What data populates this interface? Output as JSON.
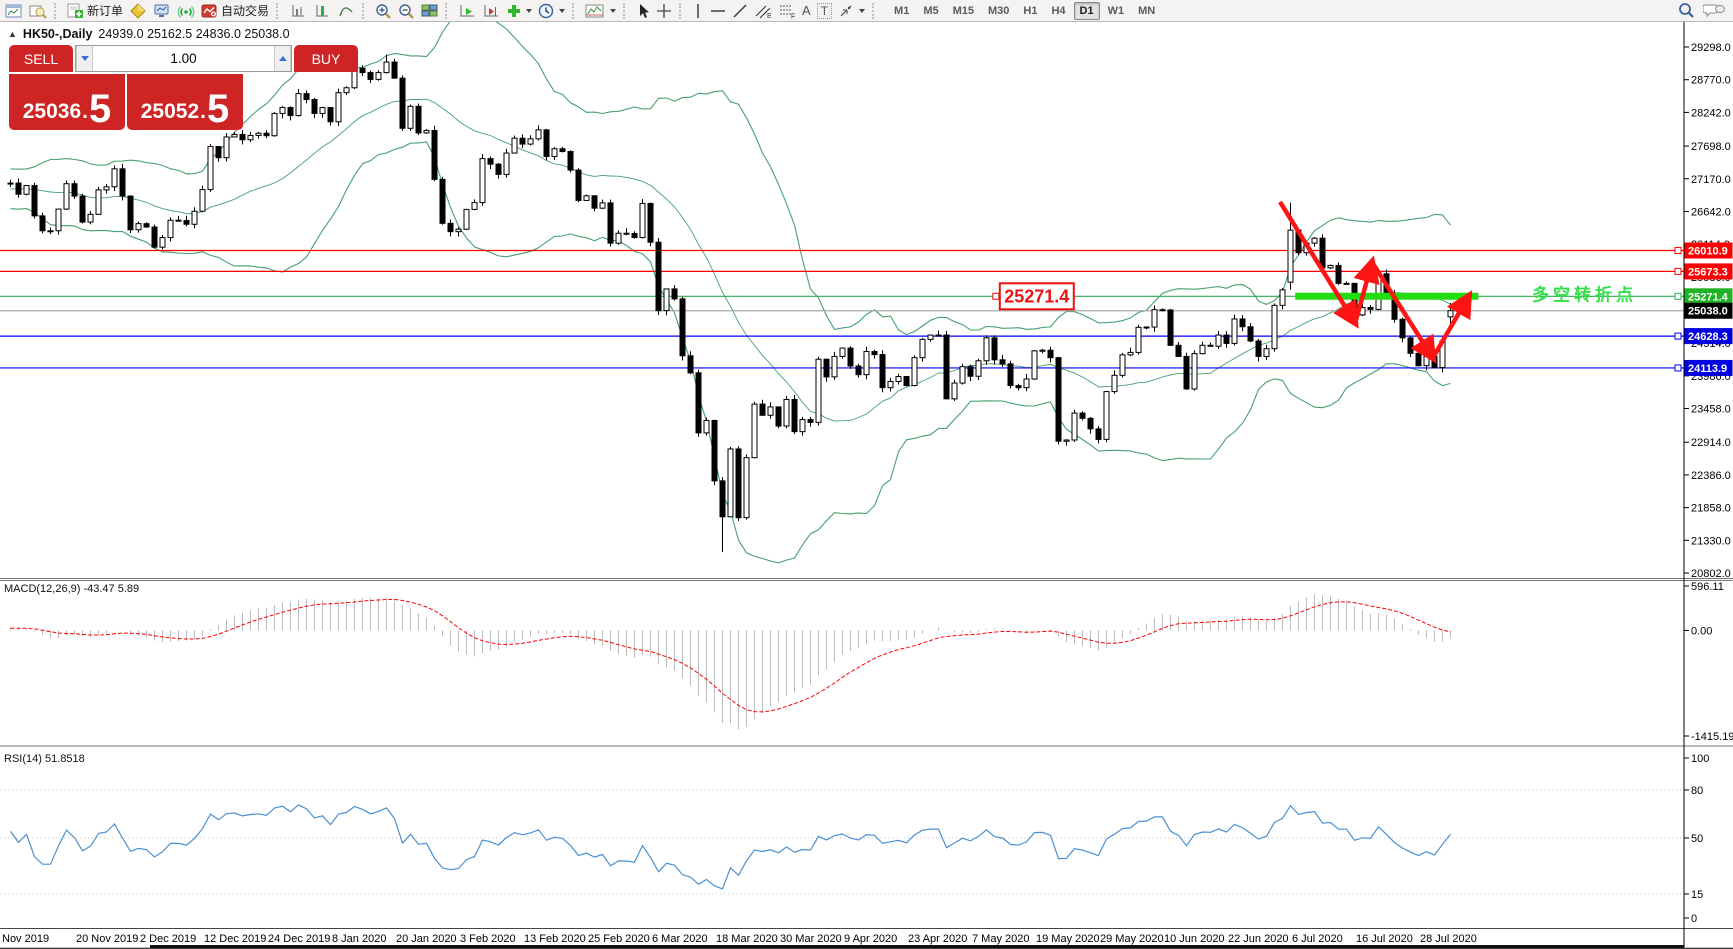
{
  "toolbar": {
    "new_order_label": "新订单",
    "autotrade_label": "自动交易",
    "timeframes": [
      "M1",
      "M5",
      "M15",
      "M30",
      "H1",
      "H4",
      "D1",
      "W1",
      "MN"
    ],
    "active_timeframe": "D1",
    "icons": {
      "text_tool": "A",
      "label_tool": "T",
      "channel_sub": "E",
      "fibo_sub": "F",
      "collapse": "▲"
    }
  },
  "chart_header": {
    "symbol_title": "HK50-,Daily",
    "ohlc": "24939.0 25162.5 24836.0 25038.0"
  },
  "trade_panel": {
    "sell_label": "SELL",
    "buy_label": "BUY",
    "volume": "1.00",
    "sell_price_main": "25036",
    "sell_price_frac": "5",
    "buy_price_main": "25052",
    "buy_price_frac": "5"
  },
  "chart_data": {
    "type": "candlestick",
    "symbol": "HK50-",
    "timeframe": "Daily",
    "last_ohlc": {
      "open": 24939.0,
      "high": 25162.5,
      "low": 24836.0,
      "close": 25038.0
    },
    "price_axis_ticks": [
      29298.0,
      28770.0,
      28242.0,
      27698.0,
      27170.0,
      26642.0,
      26114.0,
      25586.0,
      25058.0,
      24514.0,
      23986.0,
      23458.0,
      22914.0,
      22386.0,
      21858.0,
      21330.0,
      20802.0
    ],
    "date_labels": [
      "Nov 2019",
      "20 Nov 2019",
      "2 Dec 2019",
      "12 Dec 2019",
      "24 Dec 2019",
      "8 Jan 2020",
      "20 Jan 2020",
      "3 Feb 2020",
      "13 Feb 2020",
      "25 Feb 2020",
      "6 Mar 2020",
      "18 Mar 2020",
      "30 Mar 2020",
      "9 Apr 2020",
      "23 Apr 2020",
      "7 May 2020",
      "19 May 2020",
      "29 May 2020",
      "10 Jun 2020",
      "22 Jun 2020",
      "6 Jul 2020",
      "16 Jul 2020",
      "28 Jul 2020"
    ],
    "warmup_closes": [
      26950,
      27050,
      26900,
      26850,
      26700,
      26750,
      26850,
      26950,
      27100,
      27250,
      27300,
      27150,
      27000,
      26900,
      26850,
      26950,
      27050,
      27150,
      27200,
      27100
    ],
    "closes": [
      27100,
      26920,
      27060,
      26570,
      26330,
      26330,
      26680,
      27090,
      26890,
      26470,
      26595,
      26990,
      27040,
      27330,
      26890,
      26346,
      26445,
      26390,
      26065,
      26220,
      26500,
      26495,
      26435,
      26645,
      26995,
      27690,
      27510,
      27845,
      27885,
      27800,
      27870,
      27905,
      27865,
      28225,
      28320,
      28190,
      28545,
      28450,
      28225,
      28320,
      28090,
      28560,
      28640,
      28955,
      28885,
      28775,
      28885,
      29055,
      28795,
      27985,
      28340,
      27910,
      27950,
      27160,
      26450,
      26315,
      26355,
      26675,
      26785,
      27495,
      27405,
      27240,
      27585,
      27825,
      27730,
      27815,
      27960,
      27530,
      27655,
      27610,
      27310,
      26820,
      26895,
      26695,
      26780,
      26130,
      26290,
      26285,
      26220,
      26770,
      26145,
      25040,
      25390,
      25230,
      24310,
      24035,
      23065,
      23265,
      22290,
      21710,
      22805,
      21695,
      22665,
      23530,
      23350,
      23485,
      23175,
      23605,
      23085,
      23280,
      23235,
      24255,
      23970,
      24300,
      24435,
      24145,
      24005,
      24380,
      24330,
      23795,
      23895,
      23975,
      23830,
      24280,
      24575,
      24645,
      24645,
      23615,
      23870,
      24135,
      23980,
      24230,
      24600,
      24245,
      24180,
      23830,
      23795,
      23935,
      24390,
      24400,
      24280,
      22930,
      22950,
      23385,
      23300,
      23130,
      22960,
      23732,
      23995,
      24325,
      24365,
      24770,
      24775,
      25055,
      25050,
      24480,
      24300,
      23775,
      24345,
      24480,
      24465,
      24645,
      24510,
      24905,
      24780,
      24550,
      24300,
      24425,
      25125,
      25375,
      26340,
      25975,
      26130,
      26210,
      25730,
      25770,
      25480,
      25480,
      24970,
      25090,
      25060,
      25635,
      25300,
      24900,
      24600,
      24350,
      24150,
      24300,
      24120,
      24550,
      25038
    ],
    "candle_overrides": {
      "47": [
        28885,
        29175,
        28870,
        29055
      ],
      "89": [
        22290,
        22350,
        21139,
        21710
      ],
      "160": [
        25500,
        26782,
        25380,
        26340
      ],
      "180": [
        24939,
        25162.5,
        24836,
        25038
      ]
    },
    "hlines": [
      {
        "price": 26010.9,
        "color": "#ff0000",
        "tag_bg": "#ff0000"
      },
      {
        "price": 25673.3,
        "color": "#ff0000",
        "tag_bg": "#ff0000"
      },
      {
        "price": 25271.4,
        "color": "#2ead4e",
        "tag_bg": "#1fb325"
      },
      {
        "price": 24628.3,
        "color": "#0000ff",
        "tag_bg": "#0000e0"
      },
      {
        "price": 24113.9,
        "color": "#0000ff",
        "tag_bg": "#0000e0"
      }
    ],
    "current_price": {
      "value": 25038.0,
      "line_color": "#a8a8a8",
      "tag_bg": "#000000"
    },
    "annotations": {
      "price_label_box": {
        "text": "25271.4",
        "bar": 128.6,
        "price": 25271.4,
        "color": "#ee1111"
      },
      "pivot_text": {
        "text": "多空转折点",
        "bar": 190.5,
        "price": 25300,
        "color": "#33e04a"
      },
      "green_segment": {
        "price": 25271.4,
        "bar1": 160.9,
        "bar2": 183.8,
        "color": "#22dd11",
        "width": 7
      },
      "zigzag": {
        "color": "#ff1414",
        "width": 4.5,
        "points": [
          [
            159,
            26795
          ],
          [
            168.4,
            24840
          ],
          [
            170.5,
            25825
          ],
          [
            178.1,
            24275
          ],
          [
            182.6,
            25277
          ]
        ]
      }
    },
    "indicators": {
      "bollinger": {
        "period": 20,
        "deviation": 2,
        "color": "#46a06f"
      },
      "macd": {
        "label": "MACD(12,26,9) -43.47 5.89",
        "fast": 12,
        "slow": 26,
        "signal_period": 9,
        "value": -43.47,
        "signal": 5.89,
        "scale_ticks": [
          "596.11",
          "0.00",
          "-1415.19"
        ],
        "scale_values": [
          596.11,
          0.0,
          -1415.19
        ],
        "hist_color": "#bcbcbc",
        "signal_color": "#ff0000"
      },
      "rsi": {
        "label": "RSI(14) 51.8518",
        "period": 14,
        "value": 51.8518,
        "scale_ticks": [
          "100",
          "80",
          "50",
          "15",
          "0"
        ],
        "scale_values": [
          100,
          80,
          50,
          15,
          0
        ],
        "levels": [
          80,
          50,
          15
        ],
        "color": "#4a90d2"
      }
    }
  }
}
